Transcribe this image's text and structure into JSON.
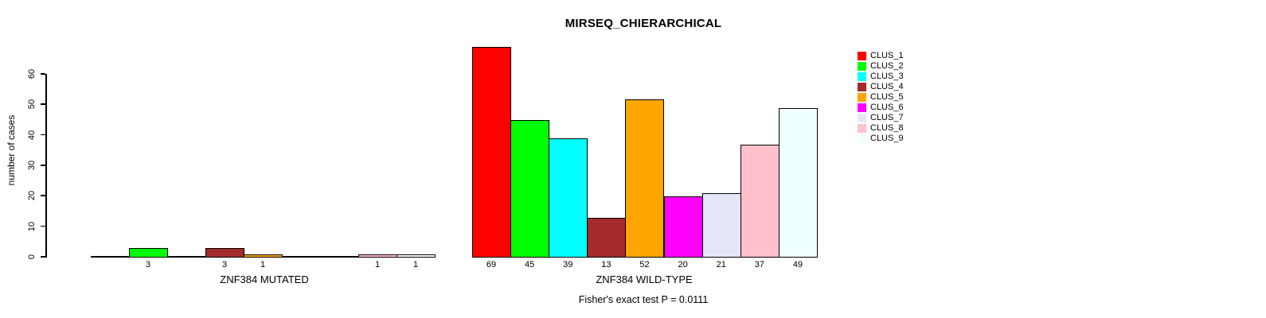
{
  "title": "MIRSEQ_CHIERARCHICAL",
  "footnote": "Fisher's exact test P = 0.0111",
  "y_axis": {
    "label": "number of cases"
  },
  "legend": {
    "items": [
      {
        "label": "CLUS_1",
        "color": "#FF0000"
      },
      {
        "label": "CLUS_2",
        "color": "#00FF00"
      },
      {
        "label": "CLUS_3",
        "color": "#00FFFF"
      },
      {
        "label": "CLUS_4",
        "color": "#A52A2A"
      },
      {
        "label": "CLUS_5",
        "color": "#FFA500"
      },
      {
        "label": "CLUS_6",
        "color": "#FF00FF"
      },
      {
        "label": "CLUS_7",
        "color": "#E6E6FA"
      },
      {
        "label": "CLUS_8",
        "color": "#FFC0CB"
      },
      {
        "label": "CLUS_9",
        "color": "#F0FFFF"
      }
    ]
  },
  "chart_data": {
    "type": "bar",
    "title": "MIRSEQ_CHIERARCHICAL",
    "ylabel": "number of cases",
    "ylim": [
      0,
      70
    ],
    "yticks": [
      0,
      10,
      20,
      30,
      40,
      50,
      60
    ],
    "grid": false,
    "legend_position": "right",
    "series_labels": [
      "CLUS_1",
      "CLUS_2",
      "CLUS_3",
      "CLUS_4",
      "CLUS_5",
      "CLUS_6",
      "CLUS_7",
      "CLUS_8",
      "CLUS_9"
    ],
    "series_colors": [
      "#FF0000",
      "#00FF00",
      "#00FFFF",
      "#A52A2A",
      "#FFA500",
      "#FF00FF",
      "#E6E6FA",
      "#FFC0CB",
      "#F0FFFF"
    ],
    "groups": [
      {
        "label": "ZNF384 MUTATED",
        "values": [
          0,
          3,
          0,
          3,
          1,
          0,
          0,
          1,
          1
        ]
      },
      {
        "label": "ZNF384 WILD-TYPE",
        "values": [
          69,
          45,
          39,
          13,
          52,
          20,
          21,
          37,
          49
        ]
      }
    ],
    "annotation": "Fisher's exact test P = 0.0111"
  }
}
